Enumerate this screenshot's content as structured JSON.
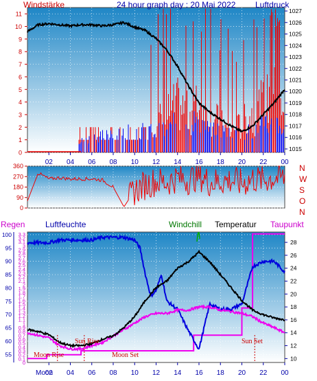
{
  "header": {
    "title": "24 hour graph day : 20 Mai 2022",
    "left_label": "Windstärke",
    "right_label": "Luftdruck"
  },
  "direction_labels": [
    "N",
    "W",
    "S",
    "O",
    "N"
  ],
  "panel3": {
    "labels": {
      "regen": "Regen",
      "luftfeuchte": "Luftfeuchte",
      "windchill": "Windchill",
      "temperatur": "Temperatur",
      "taupunkt": "Taupunkt"
    },
    "annotations": {
      "moon_rise": "Moon Rise",
      "sun_rise": "Sun Rise",
      "moon_set": "Moon Set",
      "sun_set": "Sun Set",
      "moon_overlap": "Moon"
    }
  },
  "colors": {
    "wind": "#ee0000",
    "gust_blue": "#0000ee",
    "pressure": "#000000",
    "humidity": "#0000dd",
    "temperature": "#000000",
    "dewpoint": "#ee00ee",
    "windchill": "#00aa00",
    "label_blue": "#0000aa",
    "label_red": "#cc0000",
    "plot_top": "#1e86c6",
    "plot_bottom": "#ffffff"
  },
  "chart_data": [
    {
      "type": "line",
      "title": "24 hour graph day : 20 Mai 2022",
      "xlabel": "",
      "x_ticks": [
        "02",
        "04",
        "06",
        "08",
        "10",
        "12",
        "14",
        "16",
        "18",
        "20",
        "22",
        "00"
      ],
      "left_axis": {
        "label": "Windstärke",
        "ticks": [
          0,
          1,
          2,
          3,
          4,
          5,
          6,
          7,
          8,
          9,
          10,
          11
        ],
        "range": [
          0,
          11.5
        ]
      },
      "right_axis": {
        "label": "Luftdruck",
        "ticks": [
          1015,
          1016,
          1017,
          1018,
          1019,
          1020,
          1021,
          1022,
          1023,
          1024,
          1025,
          1026,
          1027
        ],
        "range": [
          1014.7,
          1027.3
        ]
      },
      "grid": true,
      "series": [
        {
          "name": "Luftdruck",
          "axis": "right",
          "x": [
            0,
            1,
            2,
            3,
            4,
            5,
            6,
            7,
            8,
            9,
            10,
            11,
            12,
            13,
            14,
            15,
            16,
            17,
            18,
            19,
            20,
            21,
            22,
            23,
            24
          ],
          "y": [
            1025.2,
            1025.8,
            1025.9,
            1025.8,
            1025.7,
            1025.8,
            1025.8,
            1025.7,
            1025.8,
            1026.0,
            1025.6,
            1025.3,
            1024.6,
            1023.6,
            1022.2,
            1020.5,
            1019.0,
            1018.2,
            1017.6,
            1017.0,
            1016.5,
            1017.0,
            1018.0,
            1019.0,
            1020.2
          ]
        },
        {
          "name": "",
          "axis": "left",
          "profile": "wind-bars",
          "x": [
            0,
            5,
            8,
            8.5,
            10,
            12,
            13,
            14,
            15,
            16,
            17,
            18,
            19,
            20,
            21,
            22,
            23,
            24
          ],
          "y": [
            0,
            0,
            2,
            1,
            2,
            3,
            4,
            5,
            4,
            5,
            4,
            3,
            2,
            3,
            4,
            5,
            6,
            3
          ]
        },
        {
          "name": "",
          "axis": "left",
          "profile": "gust-bars",
          "x": [
            5,
            8,
            10,
            12,
            13,
            14,
            15,
            16,
            17,
            18,
            19,
            20,
            21,
            22,
            23,
            24
          ],
          "y": [
            1,
            2,
            2,
            2,
            2,
            3,
            3,
            3,
            2,
            2,
            2,
            2,
            2,
            3,
            3,
            2
          ]
        }
      ]
    },
    {
      "type": "line",
      "title": "",
      "x_ticks": [],
      "left_axis": {
        "ticks": [
          0,
          90,
          180,
          270,
          360
        ],
        "range": [
          0,
          360
        ]
      },
      "right_axis_labels": [
        "N",
        "W",
        "S",
        "O",
        "N"
      ],
      "series": [
        {
          "name": "",
          "x": [
            0,
            1,
            2,
            3,
            4,
            5,
            6,
            7,
            8,
            9,
            10,
            11,
            12,
            13,
            14,
            15,
            16,
            17,
            18,
            19,
            20,
            21,
            22,
            23,
            24
          ],
          "y": [
            60,
            300,
            250,
            260,
            250,
            250,
            250,
            240,
            180,
            10,
            150,
            200,
            230,
            220,
            260,
            240,
            280,
            220,
            230,
            240,
            210,
            250,
            240,
            260,
            260
          ]
        }
      ]
    },
    {
      "type": "line",
      "title": "",
      "x_ticks": [
        "02",
        "04",
        "06",
        "08",
        "10",
        "12",
        "14",
        "16",
        "18",
        "20",
        "22",
        "00"
      ],
      "rain_axis": {
        "label": "Regen",
        "ticks": [
          0,
          0.1,
          0.2,
          0.3,
          0.4,
          0.5,
          0.6,
          0.7,
          0.8,
          0.9,
          1,
          1.1,
          1.2,
          1.3,
          1.4,
          1.5,
          1.6,
          1.7,
          1.8,
          1.9,
          2,
          2.1,
          2.2,
          2.3,
          2.4,
          2.5,
          2.6,
          2.7,
          2.8,
          2.9,
          3,
          3.1,
          3.2,
          3.3
        ]
      },
      "humidity_axis": {
        "label": "Luftfeuchte",
        "ticks": [
          55,
          60,
          65,
          70,
          75,
          80,
          85,
          90,
          95,
          100
        ],
        "range": [
          52,
          101
        ]
      },
      "temp_axis": {
        "label": "Temperatur",
        "ticks": [
          10,
          12,
          14,
          16,
          18,
          20,
          22,
          24,
          26,
          28
        ],
        "range": [
          9.4,
          29.6
        ]
      },
      "series": [
        {
          "name": "Luftfeuchte",
          "axis": "humidity",
          "x": [
            0,
            1,
            2,
            3,
            4,
            5,
            6,
            7,
            8,
            9,
            10,
            10.5,
            11,
            11.5,
            12,
            12.5,
            13,
            14,
            15,
            16,
            17,
            18,
            19,
            20,
            21,
            22,
            23,
            24
          ],
          "y": [
            97,
            97,
            97,
            98,
            98,
            98,
            98,
            99,
            99,
            99,
            98,
            95,
            85,
            77,
            79,
            85,
            75,
            72,
            64,
            57,
            74,
            72,
            72,
            74,
            88,
            90,
            90,
            86
          ]
        },
        {
          "name": "Temperatur",
          "axis": "temp",
          "x": [
            0,
            1,
            2,
            3,
            4,
            5,
            6,
            7,
            8,
            9,
            10,
            11,
            12,
            13,
            14,
            15,
            16,
            17,
            18,
            19,
            20,
            21,
            22,
            23,
            24
          ],
          "y": [
            14.5,
            14.2,
            13.7,
            12.5,
            12.0,
            12.0,
            12.3,
            13.0,
            13.5,
            14.8,
            16.5,
            19.0,
            21.0,
            22.0,
            24.0,
            25.0,
            26.5,
            25.0,
            23.0,
            21.0,
            19.0,
            17.5,
            16.8,
            16.3,
            16.0
          ]
        },
        {
          "name": "Taupunkt",
          "axis": "temp",
          "x": [
            0,
            1,
            2,
            3,
            4,
            5,
            6,
            7,
            8,
            9,
            10,
            11,
            12,
            13,
            14,
            15,
            16,
            17,
            18,
            19,
            20,
            21,
            22,
            23,
            24
          ],
          "y": [
            14.0,
            13.6,
            13.2,
            12.0,
            11.5,
            11.5,
            12.0,
            12.5,
            13.5,
            14.5,
            15.5,
            16.5,
            17.0,
            17.0,
            17.5,
            17.5,
            18.0,
            18.0,
            17.5,
            17.3,
            17.0,
            16.5,
            15.5,
            14.8,
            14.0
          ]
        },
        {
          "name": "Regen",
          "axis": "rain",
          "x": [
            0,
            1.8,
            1.8,
            5,
            5,
            15.5,
            15.5,
            20,
            20,
            21,
            21,
            22,
            22,
            24
          ],
          "y": [
            0.1,
            0.1,
            0.2,
            0.2,
            0.3,
            0.3,
            0.7,
            0.7,
            1.4,
            1.4,
            3.3,
            3.3,
            3.3,
            3.3
          ]
        },
        {
          "name": "Windchill",
          "axis": "temp",
          "x": [
            15.8,
            15.9,
            16.0,
            16.1
          ],
          "y": [
            28,
            29.5,
            29.5,
            28
          ]
        }
      ]
    }
  ]
}
